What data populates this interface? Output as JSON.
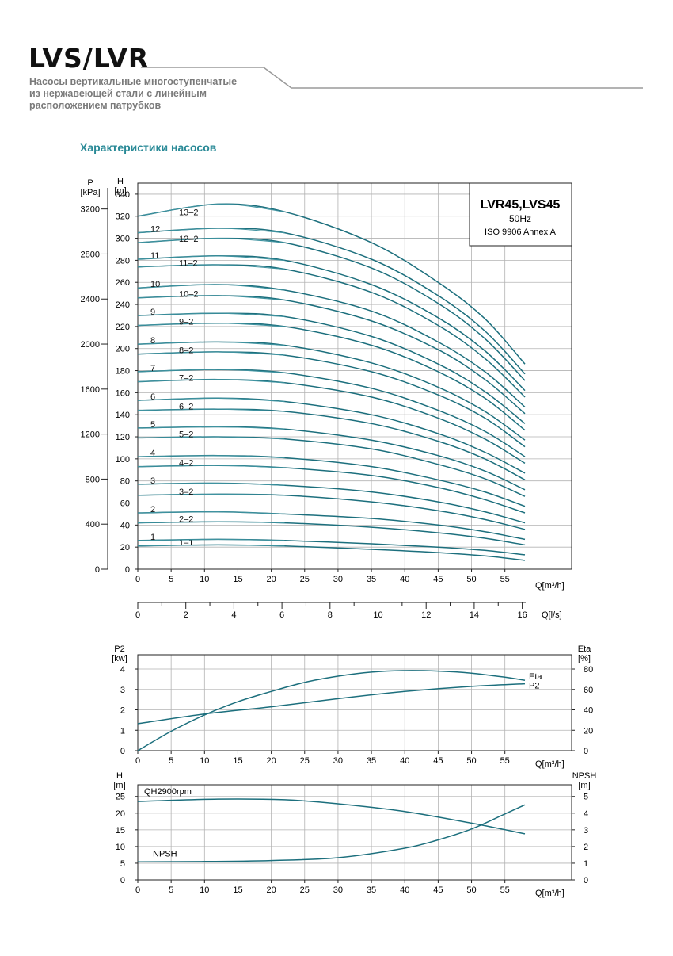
{
  "header": {
    "title": "LVS/LVR",
    "subtitle_lines": [
      "Насосы вертикальные многоступенчатые",
      "из нержавеющей стали с линейным",
      "расположением патрубков"
    ]
  },
  "section_title": "Характеристики насосов",
  "colors": {
    "curve": "#1c6f7d",
    "curve_light": "#3f93a0",
    "grid": "#b3b3b3",
    "axis": "#222222",
    "header_line": "#9a9a9a",
    "section_title": "#2a8a97"
  },
  "chart_data": [
    {
      "type": "line",
      "id": "head-curves",
      "info_box": {
        "title": "LVR45,LVS45",
        "line2": "50Hz",
        "line3": "ISO 9906 Annex A"
      },
      "left_axis_title_top": "P",
      "left_axis_title_bottom": "[kPa]",
      "right_axis_title_top": "H",
      "right_axis_title_bottom": "[m]",
      "x_axis_title": "Q[m³/h]",
      "x2_axis_title": "Q[l/s]",
      "x_ticks": [
        0,
        5,
        10,
        15,
        20,
        25,
        30,
        35,
        40,
        45,
        50,
        55
      ],
      "x2_ticks": [
        0,
        2,
        4,
        6,
        8,
        10,
        12,
        14,
        16
      ],
      "h_ticks": [
        0,
        20,
        40,
        60,
        80,
        100,
        120,
        140,
        160,
        180,
        200,
        220,
        240,
        260,
        280,
        300,
        320,
        340
      ],
      "p_ticks": [
        0,
        400,
        800,
        1200,
        1600,
        2000,
        2400,
        2800,
        3200
      ],
      "xlim": [
        0,
        65
      ],
      "hlim": [
        0,
        350
      ],
      "plim": [
        0,
        3430
      ],
      "grid": true,
      "series": [
        {
          "name": "1-1",
          "points": [
            [
              0,
              21
            ],
            [
              12,
              22
            ],
            [
              22,
              21
            ],
            [
              35,
              18
            ],
            [
              45,
              15
            ],
            [
              52,
              12
            ],
            [
              58,
              8
            ]
          ]
        },
        {
          "name": "1",
          "points": [
            [
              0,
              26
            ],
            [
              12,
              27
            ],
            [
              22,
              26
            ],
            [
              35,
              23
            ],
            [
              45,
              20
            ],
            [
              52,
              17
            ],
            [
              58,
              13
            ]
          ]
        },
        {
          "name": "2-2",
          "points": [
            [
              0,
              42
            ],
            [
              12,
              43
            ],
            [
              22,
              42
            ],
            [
              35,
              38
            ],
            [
              45,
              33
            ],
            [
              52,
              28
            ],
            [
              58,
              22
            ]
          ]
        },
        {
          "name": "2",
          "points": [
            [
              0,
              51
            ],
            [
              12,
              52
            ],
            [
              22,
              50
            ],
            [
              35,
              46
            ],
            [
              45,
              40
            ],
            [
              52,
              34
            ],
            [
              58,
              27
            ]
          ]
        },
        {
          "name": "3-2",
          "points": [
            [
              0,
              67
            ],
            [
              12,
              68
            ],
            [
              22,
              67
            ],
            [
              35,
              61
            ],
            [
              45,
              53
            ],
            [
              52,
              45
            ],
            [
              58,
              36
            ]
          ]
        },
        {
          "name": "3",
          "points": [
            [
              0,
              77
            ],
            [
              12,
              78
            ],
            [
              22,
              76
            ],
            [
              35,
              70
            ],
            [
              45,
              61
            ],
            [
              52,
              52
            ],
            [
              58,
              42
            ]
          ]
        },
        {
          "name": "4-2",
          "points": [
            [
              0,
              93
            ],
            [
              12,
              94
            ],
            [
              22,
              92
            ],
            [
              35,
              85
            ],
            [
              45,
              74
            ],
            [
              52,
              63
            ],
            [
              58,
              51
            ]
          ]
        },
        {
          "name": "4",
          "points": [
            [
              0,
              102
            ],
            [
              12,
              103
            ],
            [
              22,
              101
            ],
            [
              35,
              93
            ],
            [
              45,
              81
            ],
            [
              52,
              70
            ],
            [
              58,
              57
            ]
          ]
        },
        {
          "name": "5-2",
          "points": [
            [
              0,
              119
            ],
            [
              12,
              120
            ],
            [
              22,
              118
            ],
            [
              35,
              109
            ],
            [
              45,
              95
            ],
            [
              52,
              82
            ],
            [
              58,
              66
            ]
          ]
        },
        {
          "name": "5",
          "points": [
            [
              0,
              128
            ],
            [
              12,
              129
            ],
            [
              22,
              127
            ],
            [
              35,
              117
            ],
            [
              45,
              103
            ],
            [
              52,
              89
            ],
            [
              58,
              72
            ]
          ]
        },
        {
          "name": "6-2",
          "points": [
            [
              0,
              144
            ],
            [
              12,
              145
            ],
            [
              22,
              143
            ],
            [
              35,
              132
            ],
            [
              45,
              116
            ],
            [
              52,
              100
            ],
            [
              58,
              81
            ]
          ]
        },
        {
          "name": "6",
          "points": [
            [
              0,
              153
            ],
            [
              12,
              155
            ],
            [
              22,
              152
            ],
            [
              35,
              140
            ],
            [
              45,
              123
            ],
            [
              52,
              106
            ],
            [
              58,
              87
            ]
          ]
        },
        {
          "name": "7-2",
          "points": [
            [
              0,
              170
            ],
            [
              12,
              172
            ],
            [
              22,
              169
            ],
            [
              35,
              156
            ],
            [
              45,
              137
            ],
            [
              52,
              118
            ],
            [
              58,
              96
            ]
          ]
        },
        {
          "name": "7",
          "points": [
            [
              0,
              179
            ],
            [
              12,
              181
            ],
            [
              22,
              178
            ],
            [
              35,
              164
            ],
            [
              45,
              144
            ],
            [
              52,
              125
            ],
            [
              58,
              102
            ]
          ]
        },
        {
          "name": "8-2",
          "points": [
            [
              0,
              195
            ],
            [
              12,
              197
            ],
            [
              22,
              194
            ],
            [
              35,
              179
            ],
            [
              45,
              158
            ],
            [
              52,
              137
            ],
            [
              58,
              111
            ]
          ]
        },
        {
          "name": "8",
          "points": [
            [
              0,
              204
            ],
            [
              12,
              206
            ],
            [
              22,
              203
            ],
            [
              35,
              187
            ],
            [
              45,
              165
            ],
            [
              52,
              143
            ],
            [
              58,
              117
            ]
          ]
        },
        {
          "name": "9-2",
          "points": [
            [
              0,
              221
            ],
            [
              12,
              223
            ],
            [
              22,
              220
            ],
            [
              35,
              203
            ],
            [
              45,
              179
            ],
            [
              52,
              155
            ],
            [
              58,
              126
            ]
          ]
        },
        {
          "name": "9",
          "points": [
            [
              0,
              230
            ],
            [
              12,
              232
            ],
            [
              22,
              229
            ],
            [
              35,
              211
            ],
            [
              45,
              186
            ],
            [
              52,
              161
            ],
            [
              58,
              132
            ]
          ]
        },
        {
          "name": "10-2",
          "points": [
            [
              0,
              246
            ],
            [
              12,
              248
            ],
            [
              22,
              244
            ],
            [
              35,
              225
            ],
            [
              45,
              199
            ],
            [
              52,
              172
            ],
            [
              58,
              141
            ]
          ]
        },
        {
          "name": "10",
          "points": [
            [
              0,
              255
            ],
            [
              12,
              258
            ],
            [
              22,
              253
            ],
            [
              35,
              234
            ],
            [
              45,
              206
            ],
            [
              52,
              179
            ],
            [
              58,
              147
            ]
          ]
        },
        {
          "name": "11-2",
          "points": [
            [
              0,
              274
            ],
            [
              12,
              276
            ],
            [
              22,
              272
            ],
            [
              35,
              251
            ],
            [
              45,
              221
            ],
            [
              52,
              191
            ],
            [
              58,
              156
            ]
          ]
        },
        {
          "name": "11",
          "points": [
            [
              0,
              281
            ],
            [
              12,
              284
            ],
            [
              22,
              280
            ],
            [
              35,
              258
            ],
            [
              45,
              228
            ],
            [
              52,
              198
            ],
            [
              58,
              162
            ]
          ]
        },
        {
          "name": "12-2",
          "points": [
            [
              0,
              296
            ],
            [
              12,
              300
            ],
            [
              22,
              296
            ],
            [
              35,
              273
            ],
            [
              45,
              241
            ],
            [
              52,
              209
            ],
            [
              58,
              171
            ]
          ]
        },
        {
          "name": "12",
          "points": [
            [
              0,
              305
            ],
            [
              12,
              309
            ],
            [
              22,
              305
            ],
            [
              35,
              281
            ],
            [
              45,
              248
            ],
            [
              52,
              216
            ],
            [
              58,
              177
            ]
          ]
        },
        {
          "name": "13-2",
          "points": [
            [
              0,
              320
            ],
            [
              12,
              331
            ],
            [
              22,
              324
            ],
            [
              35,
              296
            ],
            [
              45,
              260
            ],
            [
              52,
              227
            ],
            [
              58,
              186
            ]
          ]
        }
      ]
    },
    {
      "type": "line",
      "id": "power-efficiency",
      "left_axis_title_top": "P2",
      "left_axis_title_bottom": "[kw]",
      "right_axis_title_top": "Eta",
      "right_axis_title_bottom": "[%]",
      "x_axis_title": "Q[m³/h]",
      "x_ticks": [
        0,
        5,
        10,
        15,
        20,
        25,
        30,
        35,
        40,
        45,
        50,
        55
      ],
      "left_ticks": [
        0,
        1,
        2,
        3,
        4
      ],
      "right_ticks": [
        0,
        20,
        40,
        60,
        80
      ],
      "xlim": [
        0,
        65
      ],
      "left_lim": [
        0,
        4.7
      ],
      "right_lim": [
        0,
        94
      ],
      "grid": true,
      "series": [
        {
          "name": "Eta",
          "axis": "right",
          "points": [
            [
              0,
              0
            ],
            [
              5,
              19
            ],
            [
              10,
              35
            ],
            [
              15,
              48
            ],
            [
              20,
              58
            ],
            [
              25,
              67
            ],
            [
              30,
              73
            ],
            [
              35,
              77
            ],
            [
              40,
              78.5
            ],
            [
              45,
              78
            ],
            [
              50,
              76
            ],
            [
              55,
              72
            ],
            [
              58,
              69
            ]
          ]
        },
        {
          "name": "P2",
          "axis": "left",
          "points": [
            [
              0,
              1.32
            ],
            [
              10,
              1.8
            ],
            [
              20,
              2.15
            ],
            [
              30,
              2.55
            ],
            [
              40,
              2.9
            ],
            [
              50,
              3.15
            ],
            [
              58,
              3.28
            ]
          ]
        }
      ]
    },
    {
      "type": "line",
      "id": "npsh-qh",
      "left_axis_title_top": "H",
      "left_axis_title_bottom": "[m]",
      "right_axis_title_top": "NPSH",
      "right_axis_title_bottom": "[m]",
      "x_axis_title": "Q[m³/h]",
      "x_ticks": [
        0,
        5,
        10,
        15,
        20,
        25,
        30,
        35,
        40,
        45,
        50,
        55
      ],
      "left_ticks": [
        0,
        5,
        10,
        15,
        20,
        25
      ],
      "right_ticks": [
        0,
        1,
        2,
        3,
        4,
        5
      ],
      "xlim": [
        0,
        65
      ],
      "left_lim": [
        0,
        28.5
      ],
      "right_lim": [
        0,
        5.7
      ],
      "grid": true,
      "series": [
        {
          "name": "QH2900rpm",
          "axis": "left",
          "points": [
            [
              0,
              23.5
            ],
            [
              12,
              24.2
            ],
            [
              22,
              24
            ],
            [
              30,
              22.8
            ],
            [
              40,
              20.5
            ],
            [
              50,
              17
            ],
            [
              58,
              13.8
            ]
          ]
        },
        {
          "name": "NPSH",
          "axis": "right",
          "points": [
            [
              0,
              1.08
            ],
            [
              10,
              1.1
            ],
            [
              20,
              1.16
            ],
            [
              30,
              1.33
            ],
            [
              40,
              1.9
            ],
            [
              45,
              2.4
            ],
            [
              50,
              3.05
            ],
            [
              55,
              3.95
            ],
            [
              58,
              4.5
            ]
          ]
        }
      ]
    }
  ]
}
